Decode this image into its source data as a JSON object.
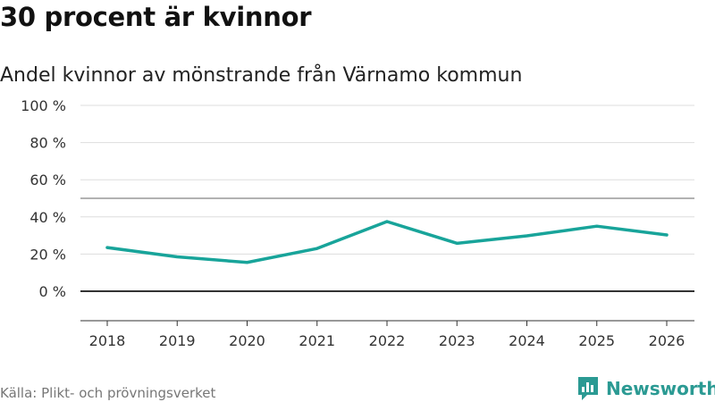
{
  "header": {
    "title": "30 procent är kvinnor",
    "subtitle": "Andel kvinnor av mönstrande från Värnamo kommun"
  },
  "footer": {
    "source": "Källa: Plikt- och prövningsverket",
    "brand": "Newsworthy",
    "brand_icon": "newsworthy-logo-icon"
  },
  "colors": {
    "line": "#18a49a",
    "grid": "#dddddd",
    "zero": "#333333",
    "brand": "#2b9a93"
  },
  "chart_data": {
    "type": "line",
    "title": "30 procent är kvinnor",
    "subtitle": "Andel kvinnor av mönstrande från Värnamo kommun",
    "xlabel": "",
    "ylabel": "",
    "categories": [
      "2018",
      "2019",
      "2020",
      "2021",
      "2022",
      "2023",
      "2024",
      "2025",
      "2026"
    ],
    "series": [
      {
        "name": "Andel kvinnor",
        "values": [
          23.5,
          18.5,
          15.5,
          23,
          37.5,
          25.8,
          29.8,
          35,
          30.3
        ]
      }
    ],
    "ylim": [
      0,
      100
    ],
    "yticks": [
      0,
      20,
      40,
      60,
      80,
      100
    ],
    "ytick_labels": [
      "0 %",
      "20 %",
      "40 %",
      "60 %",
      "80 %",
      "100 %"
    ],
    "reference_line": 50,
    "grid": true,
    "legend": "none"
  }
}
